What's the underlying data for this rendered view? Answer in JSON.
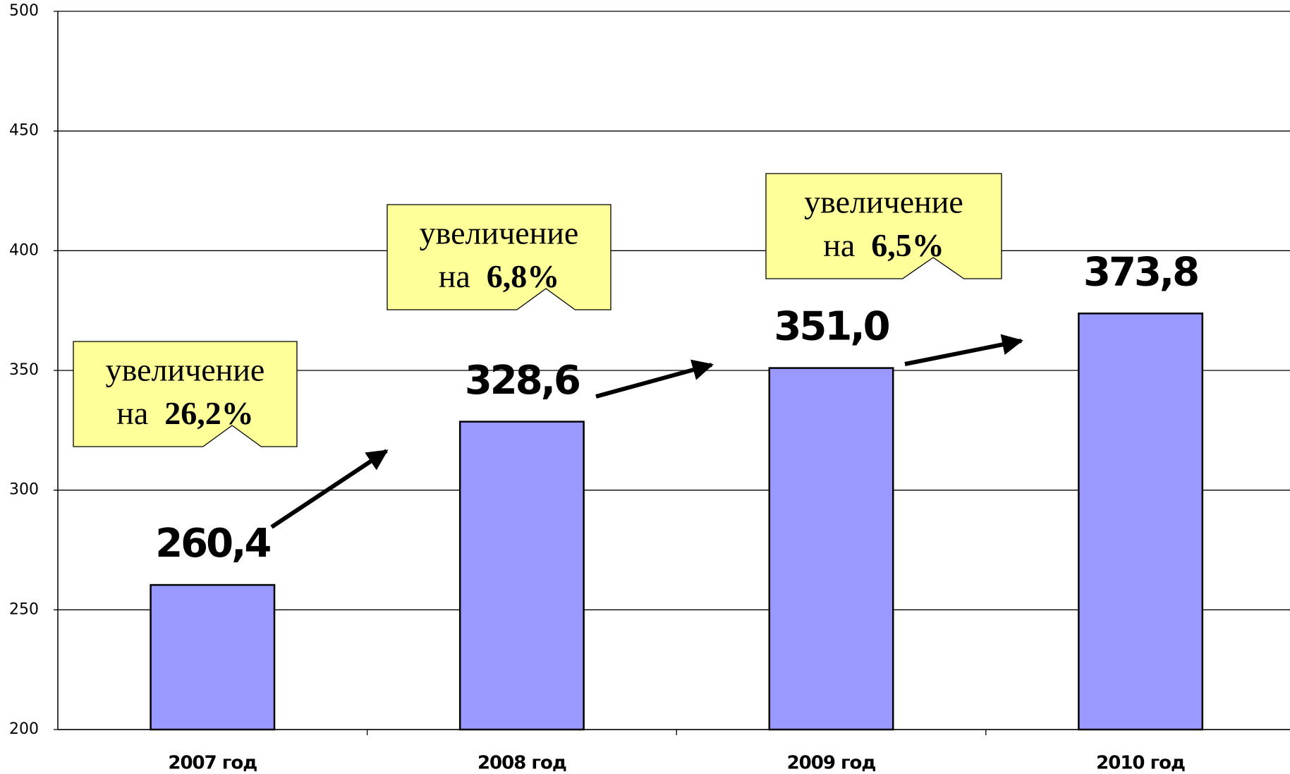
{
  "chart_data": {
    "type": "bar",
    "categories": [
      "2007 год",
      "2008 год",
      "2009 год",
      "2010 год"
    ],
    "values": [
      260.4,
      328.6,
      351.0,
      373.8
    ],
    "value_labels": [
      "260,4",
      "328,6",
      "351,0",
      "373,8"
    ],
    "color": "#9999ff",
    "ylim": [
      200,
      500
    ],
    "yticks": [
      200,
      250,
      300,
      350,
      400,
      450,
      500
    ],
    "grid": true,
    "annotations": [
      {
        "text": "увеличение",
        "prefix": "на",
        "emphasis": "26,2%"
      },
      {
        "text": "увеличение",
        "prefix": "на",
        "emphasis": "6,8%"
      },
      {
        "text": "увеличение",
        "prefix": "на",
        "emphasis": "6,5%"
      }
    ]
  }
}
